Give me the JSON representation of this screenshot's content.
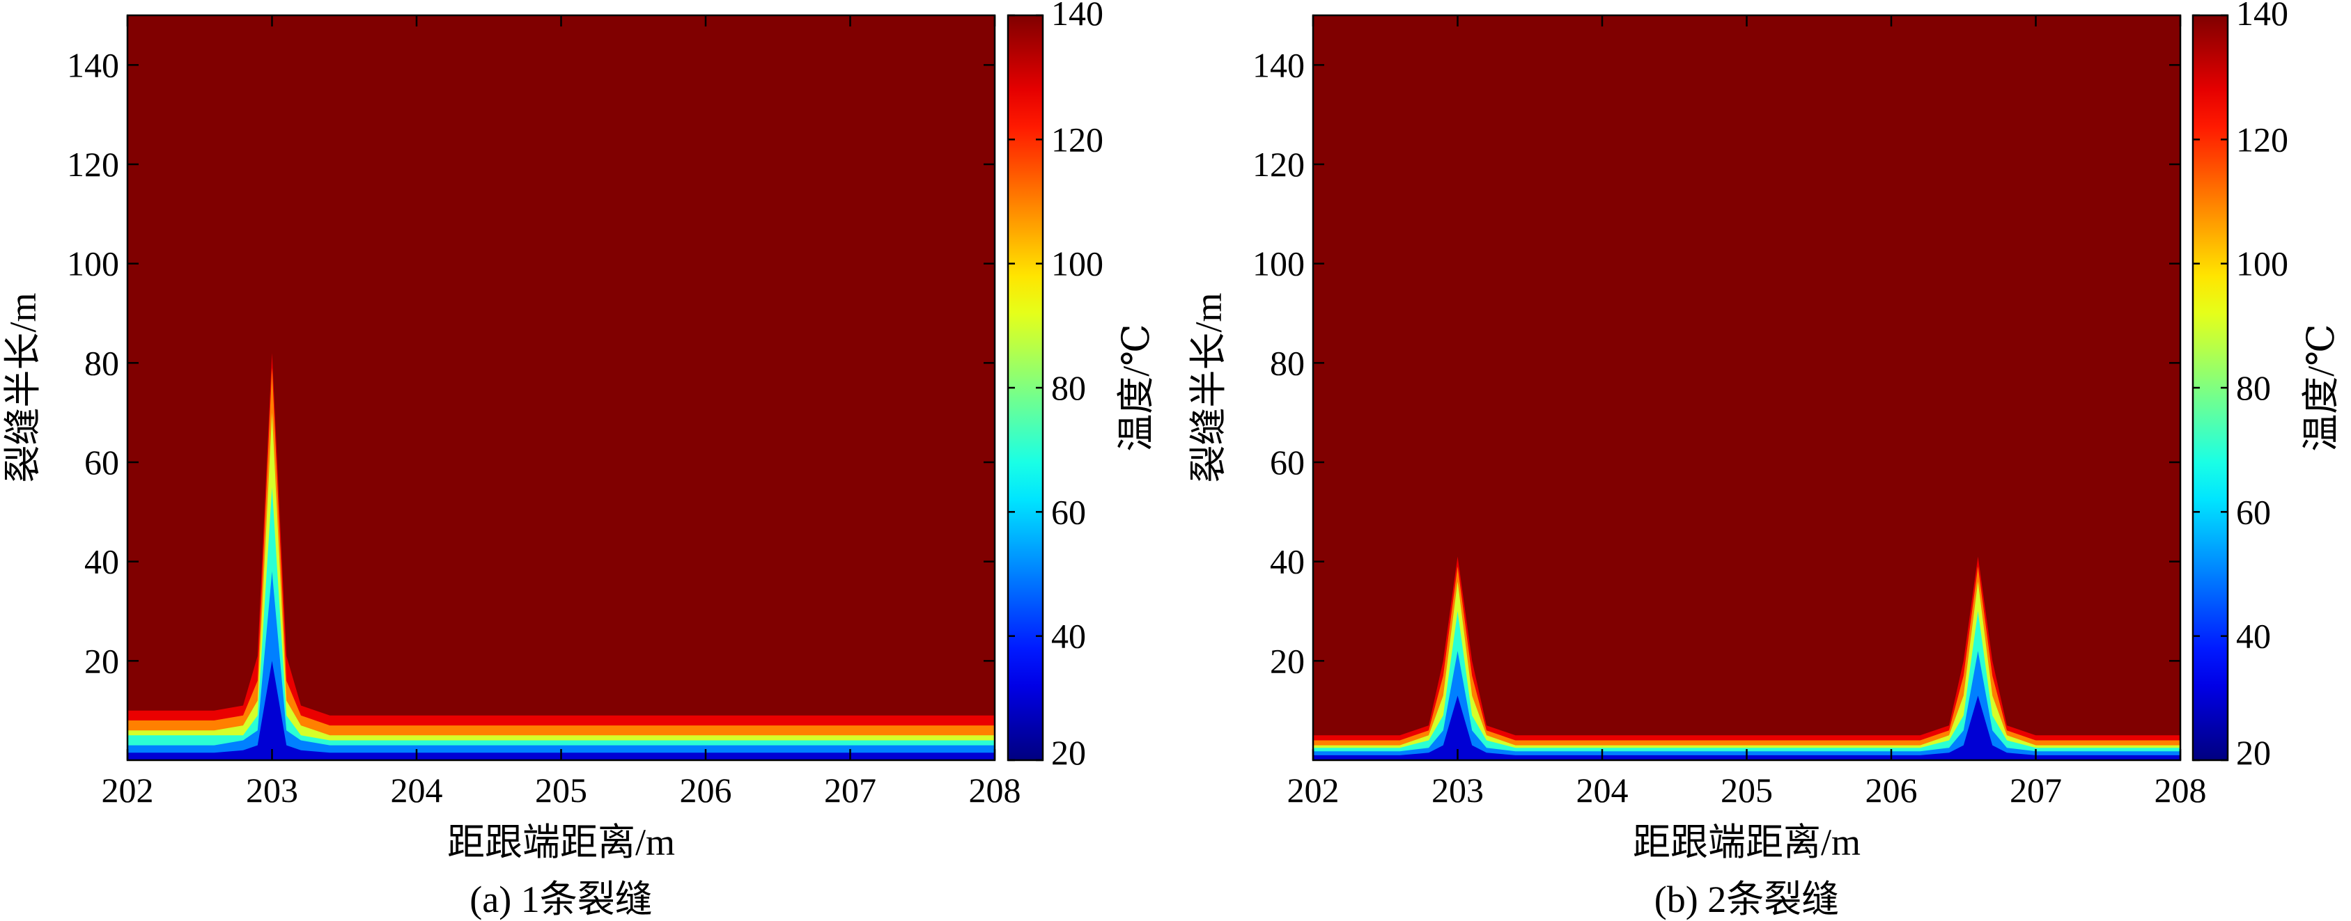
{
  "chart_data": [
    {
      "type": "heatmap",
      "plot_style": "filled-contour",
      "caption": "(a) 1条裂缝",
      "xlabel": "距跟端距离/m",
      "ylabel": "裂缝半长/m",
      "colorbar_label": "温度/℃",
      "colormap": "jet",
      "xlim": [
        202,
        208
      ],
      "ylim": [
        0,
        150
      ],
      "clim": [
        20,
        140
      ],
      "xticks": [
        "202",
        "203",
        "204",
        "205",
        "206",
        "207",
        "208"
      ],
      "yticks": [
        "20",
        "40",
        "60",
        "80",
        "100",
        "120",
        "140"
      ],
      "colorbar_ticks": [
        "20",
        "40",
        "60",
        "80",
        "100",
        "120",
        "140"
      ],
      "background_temperature": 140,
      "fractures": [
        {
          "x": 203.0,
          "half_length": 82
        }
      ],
      "x": [
        202.0,
        202.6,
        202.8,
        202.9,
        203.0,
        203.1,
        203.2,
        203.4,
        203.6,
        208.0
      ],
      "front_by_temperature": [
        {
          "temperature": 135,
          "y": [
            10,
            10,
            11,
            21,
            82,
            21,
            11,
            9,
            9,
            9
          ]
        },
        {
          "temperature": 120,
          "y": [
            8,
            8,
            9,
            16,
            79,
            16,
            9,
            7,
            7,
            7
          ]
        },
        {
          "temperature": 100,
          "y": [
            6,
            6,
            7,
            12,
            70,
            12,
            7,
            5,
            5,
            5
          ]
        },
        {
          "temperature": 80,
          "y": [
            5,
            5,
            5,
            9,
            55,
            9,
            5,
            4,
            4,
            4
          ]
        },
        {
          "temperature": 60,
          "y": [
            3,
            3,
            4,
            6,
            38,
            6,
            4,
            3,
            3,
            3
          ]
        },
        {
          "temperature": 40,
          "y": [
            1.5,
            1.5,
            2,
            3,
            20,
            3,
            2,
            1.5,
            1.5,
            1.5
          ]
        }
      ]
    },
    {
      "type": "heatmap",
      "plot_style": "filled-contour",
      "caption": "(b) 2条裂缝",
      "xlabel": "距跟端距离/m",
      "ylabel": "裂缝半长/m",
      "colorbar_label": "温度/℃",
      "colormap": "jet",
      "xlim": [
        202,
        208
      ],
      "ylim": [
        0,
        150
      ],
      "clim": [
        20,
        140
      ],
      "xticks": [
        "202",
        "203",
        "204",
        "205",
        "206",
        "207",
        "208"
      ],
      "yticks": [
        "20",
        "40",
        "60",
        "80",
        "100",
        "120",
        "140"
      ],
      "colorbar_ticks": [
        "20",
        "40",
        "60",
        "80",
        "100",
        "120",
        "140"
      ],
      "background_temperature": 140,
      "fractures": [
        {
          "x": 203.0,
          "half_length": 41
        },
        {
          "x": 206.6,
          "half_length": 41
        }
      ],
      "x": [
        202.0,
        202.6,
        202.8,
        202.9,
        203.0,
        203.1,
        203.2,
        203.4,
        206.2,
        206.4,
        206.5,
        206.6,
        206.7,
        206.8,
        207.0,
        208.0
      ],
      "front_by_temperature": [
        {
          "temperature": 135,
          "y": [
            5,
            5,
            7,
            20,
            41,
            20,
            7,
            5,
            5,
            7,
            20,
            41,
            20,
            7,
            5,
            5
          ]
        },
        {
          "temperature": 120,
          "y": [
            4,
            4,
            6,
            17,
            39,
            17,
            6,
            4,
            4,
            6,
            17,
            39,
            17,
            6,
            4,
            4
          ]
        },
        {
          "temperature": 100,
          "y": [
            3,
            3,
            5,
            13,
            36,
            13,
            5,
            3,
            3,
            5,
            13,
            36,
            13,
            5,
            3,
            3
          ]
        },
        {
          "temperature": 80,
          "y": [
            2.5,
            2.5,
            4,
            9,
            30,
            9,
            4,
            2.5,
            2.5,
            4,
            9,
            30,
            9,
            4,
            2.5,
            2.5
          ]
        },
        {
          "temperature": 60,
          "y": [
            1.8,
            1.8,
            2.5,
            6,
            22,
            6,
            2.5,
            1.8,
            1.8,
            2.5,
            6,
            22,
            6,
            2.5,
            1.8,
            1.8
          ]
        },
        {
          "temperature": 40,
          "y": [
            1,
            1,
            1.5,
            3,
            13,
            3,
            1.5,
            1,
            1,
            1.5,
            3,
            13,
            3,
            1.5,
            1,
            1
          ]
        }
      ]
    }
  ]
}
